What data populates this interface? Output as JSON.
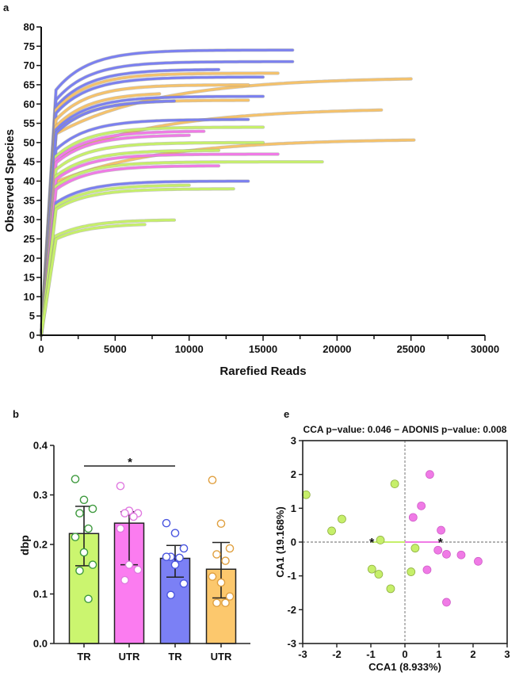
{
  "chart_data": [
    {
      "panel": "a",
      "type": "line",
      "xlabel": "Rarefied Reads",
      "ylabel": "Observed Species",
      "xlim": [
        0,
        30000
      ],
      "ylim": [
        0,
        80
      ],
      "xticks": [
        "0",
        "5000",
        "10000",
        "15000",
        "20000",
        "25000",
        "30000"
      ],
      "yticks": [
        "0",
        "5",
        "10",
        "15",
        "20",
        "25",
        "30",
        "35",
        "40",
        "45",
        "50",
        "55",
        "60",
        "65",
        "70",
        "75",
        "80"
      ],
      "colors": {
        "blue": "#7b80f0",
        "orange": "#f5c26b",
        "green": "#c6ef6a",
        "pink": "#f07ae6"
      },
      "curves": [
        {
          "group": "blue",
          "max_reads": 17000,
          "plateau": 74
        },
        {
          "group": "blue",
          "max_reads": 17000,
          "plateau": 71
        },
        {
          "group": "blue",
          "max_reads": 12000,
          "plateau": 69
        },
        {
          "group": "orange",
          "max_reads": 16000,
          "plateau": 68
        },
        {
          "group": "orange",
          "max_reads": 25000,
          "plateau": 67
        },
        {
          "group": "blue",
          "max_reads": 15000,
          "plateau": 67
        },
        {
          "group": "orange",
          "max_reads": 14000,
          "plateau": 65
        },
        {
          "group": "orange",
          "max_reads": 8000,
          "plateau": 63
        },
        {
          "group": "blue",
          "max_reads": 15000,
          "plateau": 62
        },
        {
          "group": "orange",
          "max_reads": 14000,
          "plateau": 61
        },
        {
          "group": "blue",
          "max_reads": 9000,
          "plateau": 61
        },
        {
          "group": "orange",
          "max_reads": 23000,
          "plateau": 59
        },
        {
          "group": "blue",
          "max_reads": 14000,
          "plateau": 56
        },
        {
          "group": "green",
          "max_reads": 15000,
          "plateau": 54
        },
        {
          "group": "pink",
          "max_reads": 11000,
          "plateau": 53
        },
        {
          "group": "pink",
          "max_reads": 10000,
          "plateau": 52
        },
        {
          "group": "orange",
          "max_reads": 25300,
          "plateau": 51
        },
        {
          "group": "green",
          "max_reads": 15000,
          "plateau": 50
        },
        {
          "group": "green",
          "max_reads": 12000,
          "plateau": 48
        },
        {
          "group": "pink",
          "max_reads": 16000,
          "plateau": 47
        },
        {
          "group": "green",
          "max_reads": 19000,
          "plateau": 45
        },
        {
          "group": "pink",
          "max_reads": 12000,
          "plateau": 44
        },
        {
          "group": "blue",
          "max_reads": 14000,
          "plateau": 40
        },
        {
          "group": "green",
          "max_reads": 10000,
          "plateau": 39
        },
        {
          "group": "green",
          "max_reads": 13000,
          "plateau": 38
        },
        {
          "group": "green",
          "max_reads": 9000,
          "plateau": 30
        },
        {
          "group": "green",
          "max_reads": 7000,
          "plateau": 29
        }
      ]
    },
    {
      "panel": "b",
      "type": "bar",
      "ylabel": "dbp",
      "ylim": [
        0,
        0.4
      ],
      "yticks": [
        "0.0",
        "0.1",
        "0.2",
        "0.3",
        "0.4"
      ],
      "categories": [
        "TR",
        "UTR",
        "TR",
        "UTR"
      ],
      "significance": {
        "label": "*",
        "between": [
          0,
          2
        ]
      },
      "bars": [
        {
          "mean": 0.222,
          "err_low": 0.157,
          "err_high": 0.277,
          "fill": "#cbf56f",
          "edge": "#3f9a3f",
          "points": [
            0.332,
            0.29,
            0.272,
            0.263,
            0.232,
            0.215,
            0.184,
            0.159,
            0.147,
            0.09
          ]
        },
        {
          "mean": 0.243,
          "err_low": 0.159,
          "err_high": 0.266,
          "fill": "#fb7cf0",
          "edge": "#e07ae0",
          "points": [
            0.318,
            0.268,
            0.263,
            0.263,
            0.256,
            0.232,
            0.159,
            0.149,
            0.128
          ]
        },
        {
          "mean": 0.172,
          "err_low": 0.134,
          "err_high": 0.198,
          "fill": "#7b80f5",
          "edge": "#4a55e0",
          "points": [
            0.243,
            0.223,
            0.192,
            0.175,
            0.173,
            0.175,
            0.159,
            0.121,
            0.098
          ]
        },
        {
          "mean": 0.15,
          "err_low": 0.092,
          "err_high": 0.204,
          "fill": "#fcc86d",
          "edge": "#e0a040",
          "points": [
            0.33,
            0.242,
            0.192,
            0.18,
            0.167,
            0.135,
            0.123,
            0.095,
            0.082,
            0.082
          ]
        }
      ]
    },
    {
      "panel": "e",
      "type": "scatter",
      "title": "CCA p−value: 0.046 − ADONIS p−value: 0.008",
      "xlabel": "CCA1 (8.933%)",
      "ylabel": "CA1 (19.168%)",
      "xlim": [
        -3,
        3
      ],
      "ylim": [
        -3,
        3
      ],
      "xticks": [
        "-3",
        "-2",
        "-1",
        "0",
        "1",
        "2",
        "3"
      ],
      "yticks": [
        "-3",
        "-2",
        "-1",
        "0",
        "1",
        "2",
        "3"
      ],
      "series": [
        {
          "color": "#c6ef6a",
          "centroid": [
            -0.97,
            0
          ],
          "points": [
            [
              -2.9,
              1.4
            ],
            [
              -2.15,
              0.33
            ],
            [
              -1.85,
              0.68
            ],
            [
              -0.3,
              1.72
            ],
            [
              -0.72,
              0.06
            ],
            [
              0.3,
              -0.18
            ],
            [
              -0.97,
              -0.8
            ],
            [
              -0.77,
              -0.95
            ],
            [
              -0.42,
              -1.38
            ],
            [
              0.18,
              -0.88
            ]
          ]
        },
        {
          "color": "#f07ae6",
          "centroid": [
            1.04,
            0
          ],
          "points": [
            [
              0.73,
              2.0
            ],
            [
              0.48,
              1.07
            ],
            [
              0.24,
              0.73
            ],
            [
              1.06,
              0.35
            ],
            [
              0.97,
              -0.24
            ],
            [
              1.22,
              -0.36
            ],
            [
              1.65,
              -0.38
            ],
            [
              2.15,
              -0.57
            ],
            [
              0.65,
              -0.82
            ],
            [
              1.22,
              -1.78
            ]
          ]
        }
      ]
    }
  ],
  "labels": {
    "a": "a",
    "b": "b",
    "e": "e"
  }
}
